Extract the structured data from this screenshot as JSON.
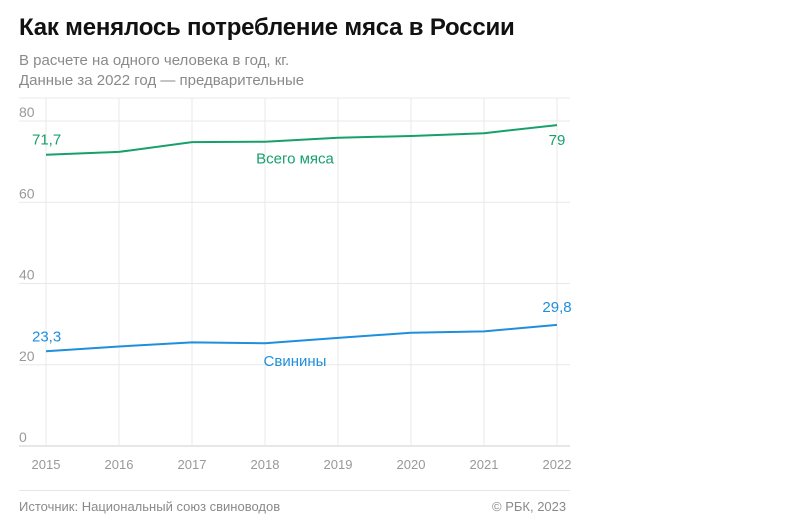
{
  "title": "Как менялось потребление мяса в России",
  "subtitle_line1": "В расчете на одного человека в год, кг.",
  "subtitle_line2": "Данные за 2022 год — предварительные",
  "source": "Источник: Национальный союз свиноводов",
  "copyright": "© РБК, 2023",
  "chart_data": {
    "type": "line",
    "x": [
      "2015",
      "2016",
      "2017",
      "2018",
      "2019",
      "2020",
      "2021",
      "2022"
    ],
    "ylim": [
      0,
      80
    ],
    "yticks": [
      0,
      20,
      40,
      60,
      80
    ],
    "grid": true,
    "series": [
      {
        "name": "Всего мяса",
        "color": "#17a06b",
        "values": [
          71.7,
          72.4,
          74.8,
          74.9,
          75.9,
          76.3,
          77.0,
          79.0
        ],
        "start_label": "71,7",
        "end_label": "79"
      },
      {
        "name": "Свинины",
        "color": "#1f8fdc",
        "values": [
          23.3,
          24.5,
          25.5,
          25.3,
          26.6,
          27.9,
          28.2,
          29.8
        ],
        "start_label": "23,3",
        "end_label": "29,8"
      }
    ]
  }
}
